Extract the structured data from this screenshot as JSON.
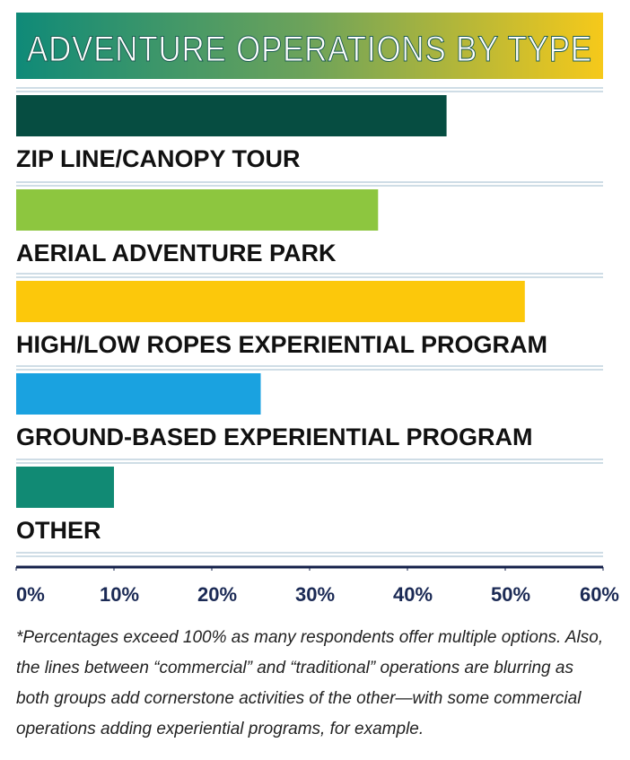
{
  "chart_data": {
    "type": "hbar",
    "title": "ADVENTURE OPERATIONS BY TYPE",
    "categories": [
      "ZIP LINE/CANOPY TOUR",
      "AERIAL ADVENTURE PARK",
      "HIGH/LOW ROPES EXPERIENTIAL PROGRAM",
      "GROUND-BASED EXPERIENTIAL PROGRAM",
      "OTHER"
    ],
    "values": [
      44,
      37,
      52,
      25,
      10
    ],
    "colors": [
      "#064d41",
      "#8dc63f",
      "#fcc80b",
      "#1aa2e0",
      "#118a74"
    ],
    "xlim": [
      0,
      60
    ],
    "xticks": [
      {
        "value": 0,
        "label": "0%"
      },
      {
        "value": 10,
        "label": "10%"
      },
      {
        "value": 20,
        "label": "20%"
      },
      {
        "value": 30,
        "label": "30%"
      },
      {
        "value": 40,
        "label": "40%"
      },
      {
        "value": 50,
        "label": "50%"
      },
      {
        "value": 60,
        "label": "60%"
      }
    ],
    "note": [
      "*Percentages exceed 100% as many respondents offer multiple options. Also,",
      "the lines between “commercial” and “traditional” operations are blurring as",
      "both groups add cornerstone activities of the other—with some commercial",
      "operations adding experiential programs, for example."
    ]
  }
}
